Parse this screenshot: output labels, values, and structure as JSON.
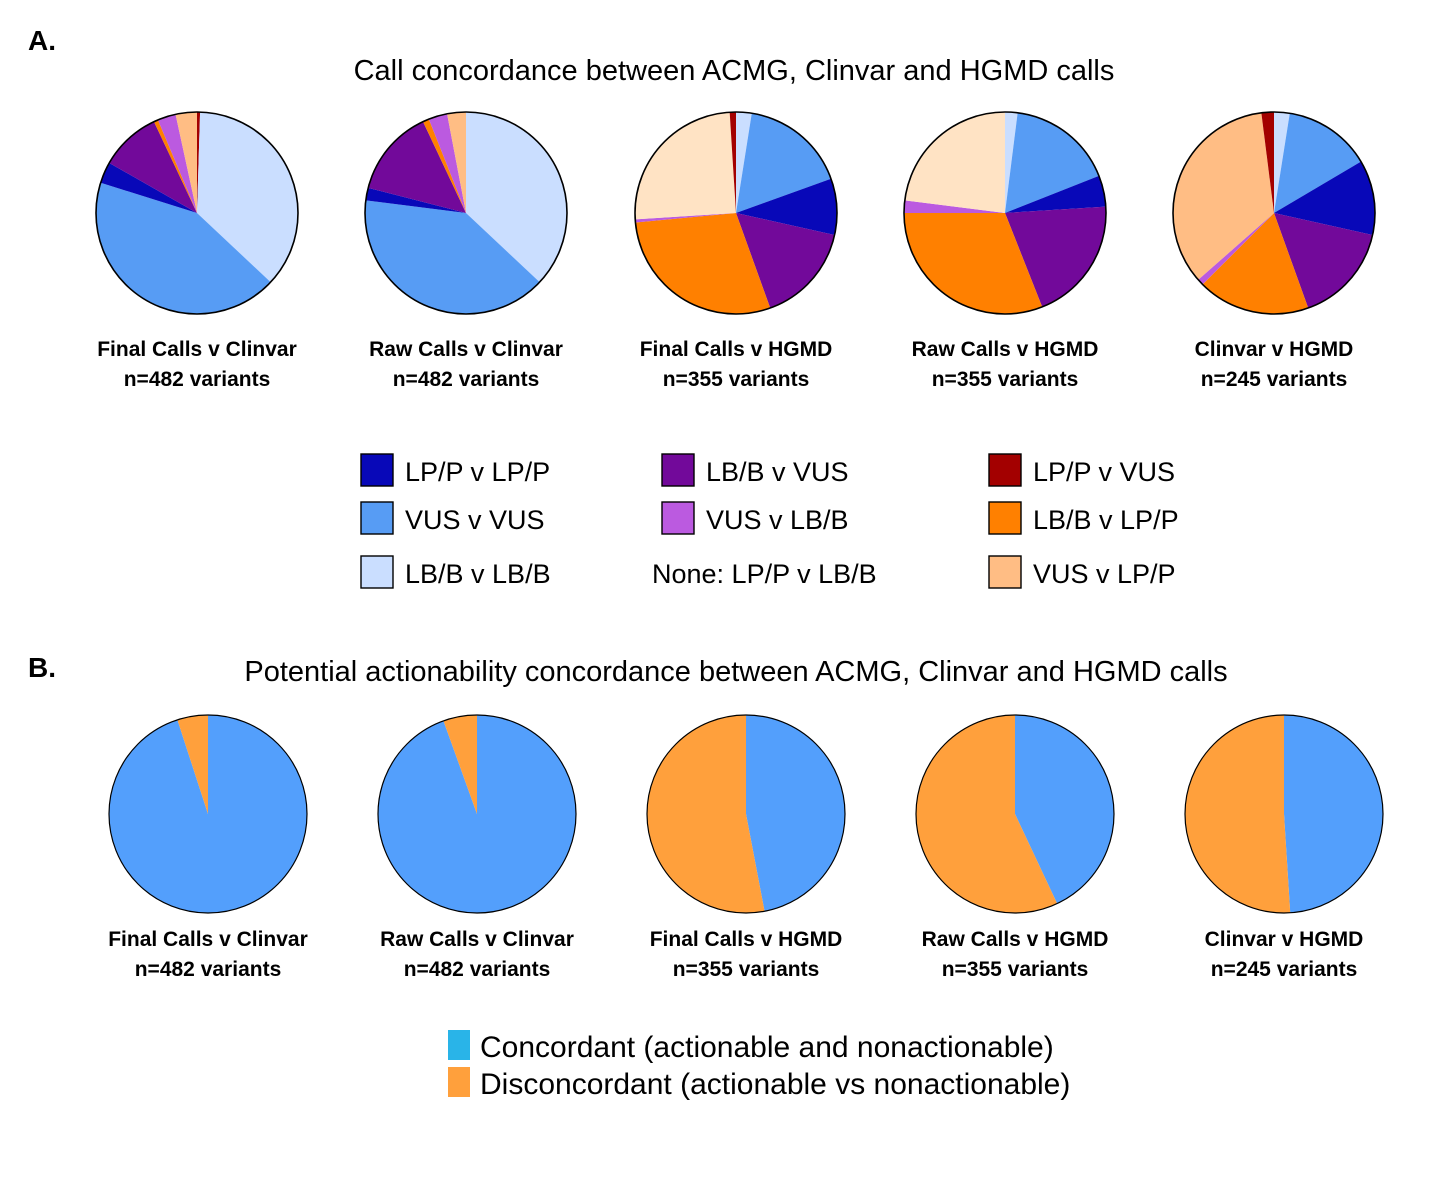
{
  "figure": {
    "panel_a_letter": "A.",
    "panel_b_letter": "B."
  },
  "chart_data": [
    {
      "type": "pie",
      "panel": "A",
      "title": "Call concordance between ACMG, Clinvar and HGMD calls",
      "legend": [
        {
          "label": "LP/P v LP/P",
          "color": "#0808b8"
        },
        {
          "label": "VUS v VUS",
          "color": "#579cf4"
        },
        {
          "label": "LB/B v LB/B",
          "color": "#cadeff"
        },
        {
          "label": "LB/B v VUS",
          "color": "#72099a"
        },
        {
          "label": "VUS v LB/B",
          "color": "#bb5ae0"
        },
        {
          "label": "None: LP/P v LB/B",
          "color": null
        },
        {
          "label": "LP/P v VUS",
          "color": "#a30000"
        },
        {
          "label": "LB/B v LP/P",
          "color": "#ff8000"
        },
        {
          "label": "VUS v LP/P",
          "color": "#ffbd84"
        }
      ],
      "pies": [
        {
          "name": "Final Calls v Clinvar",
          "n_label": "n=482 variants",
          "slices": [
            {
              "category": "LP/P v VUS",
              "value": 0.5,
              "color": "#a30000"
            },
            {
              "category": "LB/B v LB/B",
              "value": 37.5,
              "color": "#cadeff"
            },
            {
              "category": "VUS v VUS",
              "value": 44,
              "color": "#579cf4"
            },
            {
              "category": "LP/P v LP/P",
              "value": 3.5,
              "color": "#0808b8"
            },
            {
              "category": "LB/B v VUS",
              "value": 10,
              "color": "#72099a"
            },
            {
              "category": "LB/B v LP/P",
              "value": 0.7,
              "color": "#ff8000"
            },
            {
              "category": "VUS v LB/B",
              "value": 3,
              "color": "#bb5ae0"
            },
            {
              "category": "VUS v LP/P",
              "value": 3.5,
              "color": "#ffbd84"
            }
          ]
        },
        {
          "name": "Raw Calls v Clinvar",
          "n_label": "n=482 variants",
          "slices": [
            {
              "category": "LB/B v LB/B",
              "value": 37,
              "color": "#cadeff"
            },
            {
              "category": "VUS v VUS",
              "value": 40,
              "color": "#579cf4"
            },
            {
              "category": "LP/P v LP/P",
              "value": 2,
              "color": "#0808b8"
            },
            {
              "category": "LB/B v VUS",
              "value": 14,
              "color": "#72099a"
            },
            {
              "category": "LB/B v LP/P",
              "value": 1,
              "color": "#ff8000"
            },
            {
              "category": "VUS v LB/B",
              "value": 3,
              "color": "#bb5ae0"
            },
            {
              "category": "VUS v LP/P",
              "value": 3,
              "color": "#ffbd84"
            }
          ]
        },
        {
          "name": "Final Calls v HGMD",
          "n_label": "n=355 variants",
          "slices": [
            {
              "category": "LB/B v LB/B",
              "value": 2.5,
              "color": "#cadeff"
            },
            {
              "category": "VUS v VUS",
              "value": 17,
              "color": "#579cf4"
            },
            {
              "category": "LP/P v LP/P",
              "value": 9,
              "color": "#0808b8"
            },
            {
              "category": "LB/B v VUS",
              "value": 16,
              "color": "#72099a"
            },
            {
              "category": "LB/B v LP/P",
              "value": 29,
              "color": "#ff8000"
            },
            {
              "category": "VUS v LB/B",
              "value": 0.5,
              "color": "#bb5ae0"
            },
            {
              "category": "VUS v LP/P",
              "value": 25,
              "color": "#ffe3c4"
            },
            {
              "category": "LP/P v VUS",
              "value": 1,
              "color": "#a30000"
            }
          ]
        },
        {
          "name": "Raw Calls v HGMD",
          "n_label": "n=355 variants",
          "slices": [
            {
              "category": "LB/B v LB/B",
              "value": 2,
              "color": "#cadeff"
            },
            {
              "category": "VUS v VUS",
              "value": 17,
              "color": "#579cf4"
            },
            {
              "category": "LP/P v LP/P",
              "value": 5,
              "color": "#0808b8"
            },
            {
              "category": "LB/B v VUS",
              "value": 20,
              "color": "#72099a"
            },
            {
              "category": "LB/B v LP/P",
              "value": 31,
              "color": "#ff8000"
            },
            {
              "category": "VUS v LB/B",
              "value": 2,
              "color": "#bb5ae0"
            },
            {
              "category": "VUS v LP/P",
              "value": 23,
              "color": "#ffe3c4"
            }
          ]
        },
        {
          "name": "Clinvar v HGMD",
          "n_label": "n=245 variants",
          "slices": [
            {
              "category": "LB/B v LB/B",
              "value": 2.5,
              "color": "#cadeff"
            },
            {
              "category": "VUS v VUS",
              "value": 14,
              "color": "#579cf4"
            },
            {
              "category": "LP/P v LP/P",
              "value": 12,
              "color": "#0808b8"
            },
            {
              "category": "LB/B v VUS",
              "value": 16,
              "color": "#72099a"
            },
            {
              "category": "LB/B v LP/P",
              "value": 18,
              "color": "#ff8000"
            },
            {
              "category": "VUS v LB/B",
              "value": 1,
              "color": "#bb5ae0"
            },
            {
              "category": "VUS v LP/P",
              "value": 34.5,
              "color": "#ffbd84"
            },
            {
              "category": "LP/P v VUS",
              "value": 2,
              "color": "#a30000"
            }
          ]
        }
      ]
    },
    {
      "type": "pie",
      "panel": "B",
      "title": "Potential actionability concordance between ACMG, Clinvar and HGMD calls",
      "legend": [
        {
          "label": "Concordant (actionable and nonactionable)",
          "color": "#29b4e8"
        },
        {
          "label": "Disconcordant (actionable vs nonactionable)",
          "color": "#ffa03c"
        }
      ],
      "pies": [
        {
          "name": "Final Calls v Clinvar",
          "n_label": "n=482 variants",
          "slices": [
            {
              "category": "Concordant",
              "value": 95,
              "color": "#539ffc"
            },
            {
              "category": "Disconcordant",
              "value": 5,
              "color": "#ffa03c"
            }
          ]
        },
        {
          "name": "Raw Calls v Clinvar",
          "n_label": "n=482 variants",
          "slices": [
            {
              "category": "Concordant",
              "value": 94.5,
              "color": "#539ffc"
            },
            {
              "category": "Disconcordant",
              "value": 5.5,
              "color": "#ffa03c"
            }
          ]
        },
        {
          "name": "Final Calls v HGMD",
          "n_label": "n=355 variants",
          "slices": [
            {
              "category": "Concordant",
              "value": 47,
              "color": "#539ffc"
            },
            {
              "category": "Disconcordant",
              "value": 53,
              "color": "#ffa03c"
            }
          ]
        },
        {
          "name": "Raw Calls v HGMD",
          "n_label": "n=355 variants",
          "slices": [
            {
              "category": "Concordant",
              "value": 43,
              "color": "#539ffc"
            },
            {
              "category": "Disconcordant",
              "value": 57,
              "color": "#ffa03c"
            }
          ]
        },
        {
          "name": "Clinvar v HGMD",
          "n_label": "n=245 variants",
          "slices": [
            {
              "category": "Concordant",
              "value": 49,
              "color": "#539ffc"
            },
            {
              "category": "Disconcordant",
              "value": 51,
              "color": "#ffa03c"
            }
          ]
        }
      ]
    }
  ]
}
